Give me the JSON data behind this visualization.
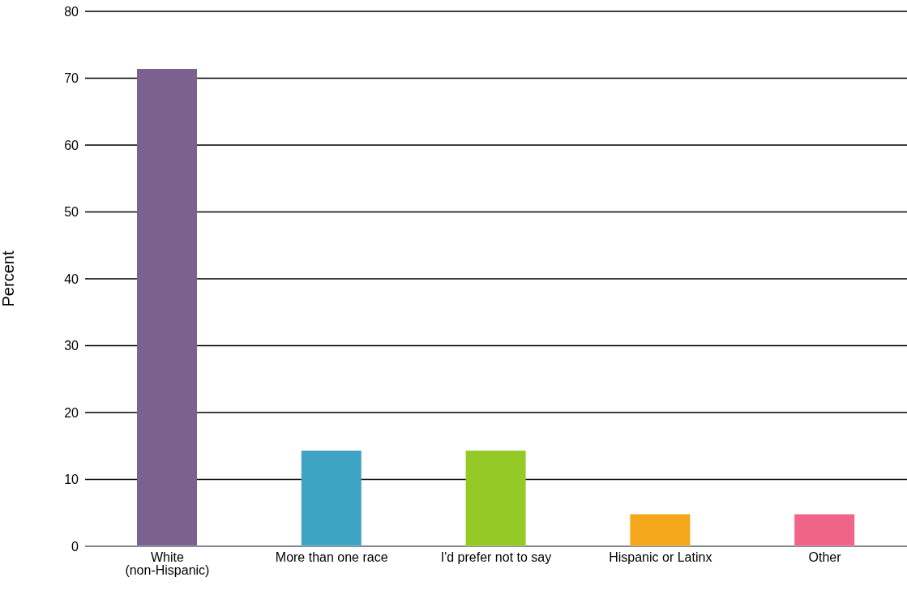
{
  "chart_data": {
    "type": "bar",
    "ylabel": "Percent",
    "categories": [
      "White (non-Hispanic)",
      "More than one race",
      "I'd prefer not to say",
      "Hispanic or Latinx",
      "Other"
    ],
    "values": [
      71.4,
      14.3,
      14.3,
      4.8,
      4.8
    ],
    "colors": [
      "#7b618e",
      "#3fa3c3",
      "#95c926",
      "#f5a71b",
      "#ef6588"
    ],
    "ylim": [
      0,
      80
    ],
    "yticks": [
      0,
      10,
      20,
      30,
      40,
      50,
      60,
      70,
      80
    ],
    "grid": "y"
  }
}
